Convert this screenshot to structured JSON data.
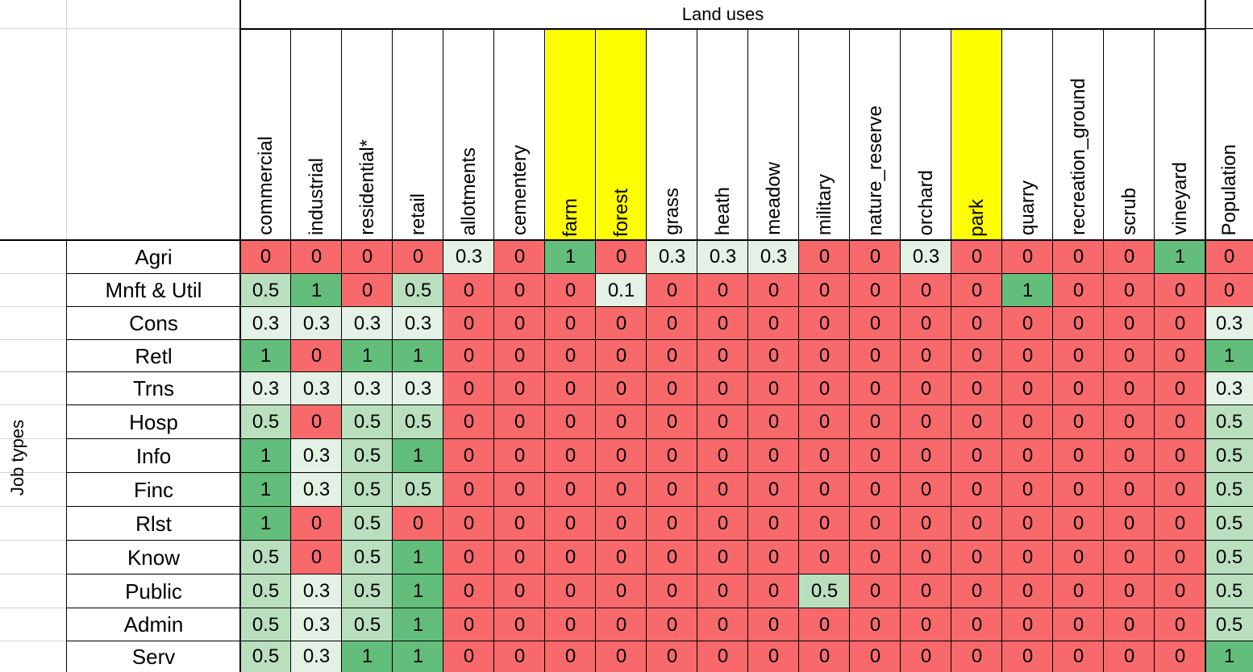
{
  "header_title": "Land uses",
  "side_label": "Job types",
  "colors": {
    "zero": "#f8696b",
    "low": "#e3f2e4",
    "mid": "#b9dfbf",
    "high": "#63be7b",
    "highlight": "#ffff00"
  },
  "columns": [
    {
      "label": "commercial",
      "highlight": false
    },
    {
      "label": "industrial",
      "highlight": false
    },
    {
      "label": "residential*",
      "highlight": false
    },
    {
      "label": "retail",
      "highlight": false
    },
    {
      "label": "allotments",
      "highlight": false
    },
    {
      "label": "cementery",
      "highlight": false
    },
    {
      "label": "farm",
      "highlight": true
    },
    {
      "label": "forest",
      "highlight": true
    },
    {
      "label": "grass",
      "highlight": false
    },
    {
      "label": "heath",
      "highlight": false
    },
    {
      "label": "meadow",
      "highlight": false
    },
    {
      "label": "military",
      "highlight": false
    },
    {
      "label": "nature_reserve",
      "highlight": false
    },
    {
      "label": "orchard",
      "highlight": false
    },
    {
      "label": "park",
      "highlight": true
    },
    {
      "label": "quarry",
      "highlight": false
    },
    {
      "label": "recreation_ground",
      "highlight": false
    },
    {
      "label": "scrub",
      "highlight": false
    },
    {
      "label": "vineyard",
      "highlight": false
    },
    {
      "label": "Population",
      "highlight": false
    }
  ],
  "rows": [
    {
      "label": "Agri",
      "values": [
        "0",
        "0",
        "0",
        "0",
        "0.3",
        "0",
        "1",
        "0",
        "0.3",
        "0.3",
        "0.3",
        "0",
        "0",
        "0.3",
        "0",
        "0",
        "0",
        "0",
        "1",
        "0"
      ]
    },
    {
      "label": "Mnft & Util",
      "values": [
        "0.5",
        "1",
        "0",
        "0.5",
        "0",
        "0",
        "0",
        "0.1",
        "0",
        "0",
        "0",
        "0",
        "0",
        "0",
        "0",
        "1",
        "0",
        "0",
        "0",
        "0"
      ]
    },
    {
      "label": "Cons",
      "values": [
        "0.3",
        "0.3",
        "0.3",
        "0.3",
        "0",
        "0",
        "0",
        "0",
        "0",
        "0",
        "0",
        "0",
        "0",
        "0",
        "0",
        "0",
        "0",
        "0",
        "0",
        "0.3"
      ]
    },
    {
      "label": "Retl",
      "values": [
        "1",
        "0",
        "1",
        "1",
        "0",
        "0",
        "0",
        "0",
        "0",
        "0",
        "0",
        "0",
        "0",
        "0",
        "0",
        "0",
        "0",
        "0",
        "0",
        "1"
      ]
    },
    {
      "label": "Trns",
      "values": [
        "0.3",
        "0.3",
        "0.3",
        "0.3",
        "0",
        "0",
        "0",
        "0",
        "0",
        "0",
        "0",
        "0",
        "0",
        "0",
        "0",
        "0",
        "0",
        "0",
        "0",
        "0.3"
      ]
    },
    {
      "label": "Hosp",
      "values": [
        "0.5",
        "0",
        "0.5",
        "0.5",
        "0",
        "0",
        "0",
        "0",
        "0",
        "0",
        "0",
        "0",
        "0",
        "0",
        "0",
        "0",
        "0",
        "0",
        "0",
        "0.5"
      ]
    },
    {
      "label": "Info",
      "values": [
        "1",
        "0.3",
        "0.5",
        "1",
        "0",
        "0",
        "0",
        "0",
        "0",
        "0",
        "0",
        "0",
        "0",
        "0",
        "0",
        "0",
        "0",
        "0",
        "0",
        "0.5"
      ]
    },
    {
      "label": "Finc",
      "values": [
        "1",
        "0.3",
        "0.5",
        "0.5",
        "0",
        "0",
        "0",
        "0",
        "0",
        "0",
        "0",
        "0",
        "0",
        "0",
        "0",
        "0",
        "0",
        "0",
        "0",
        "0.5"
      ]
    },
    {
      "label": "Rlst",
      "values": [
        "1",
        "0",
        "0.5",
        "0",
        "0",
        "0",
        "0",
        "0",
        "0",
        "0",
        "0",
        "0",
        "0",
        "0",
        "0",
        "0",
        "0",
        "0",
        "0",
        "0.5"
      ]
    },
    {
      "label": "Know",
      "values": [
        "0.5",
        "0",
        "0.5",
        "1",
        "0",
        "0",
        "0",
        "0",
        "0",
        "0",
        "0",
        "0",
        "0",
        "0",
        "0",
        "0",
        "0",
        "0",
        "0",
        "0.5"
      ]
    },
    {
      "label": "Public",
      "values": [
        "0.5",
        "0.3",
        "0.5",
        "1",
        "0",
        "0",
        "0",
        "0",
        "0",
        "0",
        "0",
        "0.5",
        "0",
        "0",
        "0",
        "0",
        "0",
        "0",
        "0",
        "0.5"
      ]
    },
    {
      "label": "Admin",
      "values": [
        "0.5",
        "0.3",
        "0.5",
        "1",
        "0",
        "0",
        "0",
        "0",
        "0",
        "0",
        "0",
        "0",
        "0",
        "0",
        "0",
        "0",
        "0",
        "0",
        "0",
        "0.5"
      ]
    },
    {
      "label": "Serv",
      "values": [
        "0.5",
        "0.3",
        "1",
        "1",
        "0",
        "0",
        "0",
        "0",
        "0",
        "0",
        "0",
        "0",
        "0",
        "0",
        "0",
        "0",
        "0",
        "0",
        "0",
        "1"
      ]
    }
  ]
}
